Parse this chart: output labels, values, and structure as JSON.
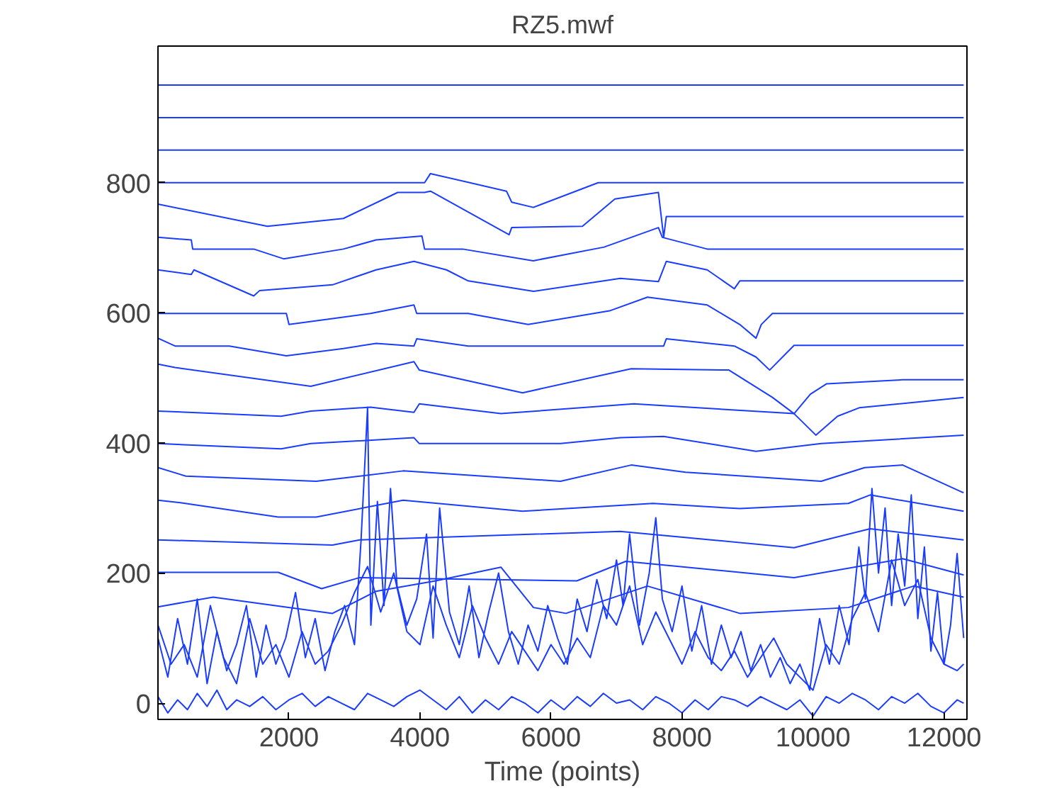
{
  "chart_data": {
    "type": "line",
    "title": "RZ5.mwf",
    "xlabel": "Time (points)",
    "xlim": [
      0,
      12350
    ],
    "ylim": [
      -25,
      1010
    ],
    "xticks": [
      2000,
      4000,
      6000,
      8000,
      10000,
      12000
    ],
    "yticks": [
      0,
      200,
      400,
      600,
      800
    ],
    "grid": false,
    "marker": "none",
    "line_style": "solid",
    "series": [
      {
        "color": "#1a3cff",
        "x": [
          0,
          12300
        ],
        "values": [
          950,
          950
        ]
      },
      {
        "color": "#1a3cff",
        "x": [
          0,
          12300
        ],
        "values": [
          900,
          900
        ]
      },
      {
        "color": "#1a3cff",
        "x": [
          0,
          12300
        ],
        "values": [
          850,
          850
        ]
      },
      {
        "color": "#1a3cff",
        "x": [
          0,
          4070,
          4160,
          5320,
          5400,
          5730,
          6720,
          12300
        ],
        "values": [
          800,
          800,
          814,
          787,
          770,
          762,
          800,
          800
        ]
      },
      {
        "color": "#1a3cff",
        "x": [
          0,
          1670,
          2830,
          3660,
          4070,
          4160,
          5360,
          5400,
          6480,
          6975,
          7640,
          7720,
          7760,
          12300
        ],
        "values": [
          767,
          733,
          745,
          785,
          785,
          787,
          720,
          731,
          733,
          775,
          785,
          716,
          748,
          748
        ]
      },
      {
        "color": "#1a3cff",
        "x": [
          0,
          509,
          530,
          1462,
          1918,
          2830,
          3330,
          4030,
          4070,
          4650,
          5730,
          6810,
          7640,
          7700,
          8385,
          12300
        ],
        "values": [
          716,
          712,
          698,
          698,
          683,
          698,
          712,
          718,
          698,
          698,
          680,
          701,
          731,
          716,
          698,
          698
        ]
      },
      {
        "color": "#1a3cff",
        "x": [
          0,
          509,
          550,
          1462,
          1550,
          2665,
          3330,
          3908,
          4405,
          4737,
          5732,
          7058,
          7640,
          7760,
          8385,
          8799,
          8882,
          12300
        ],
        "values": [
          666,
          659,
          666,
          626,
          634,
          643,
          666,
          679,
          666,
          649,
          633,
          653,
          648,
          679,
          666,
          637,
          649,
          649
        ]
      },
      {
        "color": "#1a3cff",
        "x": [
          0,
          1960,
          2000,
          2665,
          3245,
          3908,
          3950,
          4737,
          5650,
          6893,
          7473,
          8385,
          8882,
          9130,
          9210,
          9380,
          12300
        ],
        "values": [
          599,
          599,
          582,
          591,
          599,
          612,
          599,
          599,
          582,
          603,
          624,
          612,
          582,
          561,
          582,
          599,
          599
        ]
      },
      {
        "color": "#1a3cff",
        "x": [
          0,
          260,
          1090,
          1960,
          2830,
          3330,
          3908,
          3950,
          4737,
          7720,
          7760,
          8799,
          9130,
          9338,
          9711,
          12300
        ],
        "values": [
          561,
          549,
          549,
          534,
          545,
          553,
          549,
          560,
          549,
          549,
          560,
          549,
          532,
          512,
          550,
          550
        ]
      },
      {
        "color": "#1a3cff",
        "x": [
          0,
          260,
          2333,
          3908,
          3990,
          5566,
          7224,
          8716,
          9380,
          9711,
          9960,
          10209,
          11369,
          12300
        ],
        "values": [
          521,
          516,
          487,
          525,
          512,
          477,
          514,
          512,
          470,
          445,
          475,
          491,
          497,
          497
        ]
      },
      {
        "color": "#1a3cff",
        "x": [
          0,
          1880,
          2333,
          3245,
          3908,
          3990,
          5235,
          7265,
          9711,
          10043,
          10375,
          10705,
          12300
        ],
        "values": [
          449,
          441,
          449,
          455,
          447,
          460,
          445,
          460,
          445,
          412,
          441,
          454,
          470
        ]
      },
      {
        "color": "#1a3cff",
        "x": [
          0,
          1880,
          2333,
          3908,
          3990,
          6146,
          7058,
          7720,
          9130,
          10126,
          12300
        ],
        "values": [
          399,
          391,
          399,
          408,
          399,
          399,
          408,
          410,
          387,
          399,
          412
        ]
      },
      {
        "color": "#1a3cff",
        "x": [
          0,
          426,
          2416,
          3742,
          6146,
          7224,
          8053,
          10126,
          10788,
          11369,
          12282,
          12300
        ],
        "values": [
          362,
          349,
          341,
          357,
          341,
          366,
          355,
          341,
          362,
          366,
          324,
          324
        ]
      },
      {
        "color": "#1a3cff",
        "x": [
          0,
          343,
          1836,
          2416,
          3742,
          5566,
          7556,
          8882,
          10540,
          10872,
          12300
        ],
        "values": [
          312,
          308,
          286,
          286,
          312,
          295,
          307,
          299,
          307,
          320,
          295
        ]
      },
      {
        "color": "#1a3cff",
        "x": [
          0,
          2665,
          3079,
          7058,
          9711,
          10872,
          12300
        ],
        "values": [
          251,
          243,
          251,
          264,
          239,
          268,
          251
        ]
      },
      {
        "color": "#1a3cff",
        "x": [
          0,
          1836,
          2499,
          3079,
          6395,
          7141,
          9711,
          11369,
          12300
        ],
        "values": [
          201,
          201,
          176,
          193,
          188,
          218,
          193,
          222,
          197
        ]
      },
      {
        "color": "#1a3cff",
        "x": [
          0,
          841,
          2665,
          3330,
          4240,
          5235,
          5732,
          6229,
          7473,
          8882,
          10540,
          11535,
          12300
        ],
        "values": [
          148,
          163,
          138,
          172,
          188,
          209,
          147,
          138,
          180,
          138,
          147,
          180,
          163
        ]
      },
      {
        "color": "#1a3cff",
        "x": [
          0,
          150,
          300,
          450,
          600,
          750,
          900,
          1050,
          1200,
          1350,
          1500,
          1650,
          1800,
          1950,
          2100,
          2250,
          2400,
          2550,
          2700,
          2850,
          3000,
          3100,
          3200,
          3250,
          3350,
          3450,
          3550,
          3650,
          3800,
          3950,
          4100,
          4200,
          4300,
          4450,
          4600,
          4750,
          4900,
          5050,
          5200,
          5350,
          5500,
          5650,
          5800,
          5950,
          6100,
          6250,
          6400,
          6550,
          6700,
          6850,
          7000,
          7100,
          7200,
          7350,
          7500,
          7600,
          7700,
          7850,
          8000,
          8150,
          8300,
          8450,
          8600,
          8750,
          8900,
          9050,
          9200,
          9350,
          9500,
          9650,
          9800,
          9950,
          10100,
          10250,
          10400,
          10550,
          10700,
          10800,
          10900,
          11000,
          11100,
          11200,
          11300,
          11400,
          11500,
          11600,
          11700,
          11800,
          11900,
          12000,
          12100,
          12200,
          12300
        ],
        "values": [
          100,
          40,
          130,
          60,
          160,
          30,
          110,
          50,
          90,
          150,
          40,
          120,
          60,
          100,
          170,
          70,
          130,
          50,
          110,
          150,
          90,
          250,
          455,
          120,
          310,
          150,
          330,
          180,
          120,
          160,
          260,
          100,
          300,
          140,
          90,
          180,
          70,
          140,
          200,
          110,
          60,
          120,
          80,
          150,
          100,
          60,
          160,
          110,
          190,
          130,
          220,
          150,
          260,
          120,
          200,
          285,
          160,
          110,
          180,
          80,
          150,
          60,
          120,
          70,
          110,
          50,
          90,
          40,
          70,
          30,
          60,
          20,
          130,
          60,
          150,
          90,
          240,
          160,
          330,
          200,
          300,
          150,
          260,
          180,
          320,
          130,
          240,
          80,
          170,
          60,
          120,
          230,
          100
        ]
      },
      {
        "color": "#1a3cff",
        "x": [
          0,
          200,
          400,
          600,
          800,
          1000,
          1200,
          1400,
          1600,
          1800,
          2000,
          2200,
          2400,
          2600,
          2800,
          3000,
          3200,
          3400,
          3600,
          3800,
          4000,
          4200,
          4400,
          4600,
          4800,
          5000,
          5200,
          5400,
          5600,
          5800,
          6000,
          6200,
          6400,
          6600,
          6800,
          7000,
          7200,
          7400,
          7600,
          7800,
          8000,
          8200,
          8400,
          8600,
          8800,
          9000,
          9200,
          9400,
          9600,
          9800,
          10000,
          10200,
          10400,
          10600,
          10800,
          11000,
          11200,
          11400,
          11600,
          11800,
          12000,
          12200,
          12300
        ],
        "values": [
          120,
          60,
          90,
          40,
          150,
          70,
          30,
          130,
          60,
          90,
          40,
          110,
          60,
          80,
          120,
          170,
          210,
          140,
          200,
          110,
          90,
          180,
          120,
          70,
          150,
          100,
          60,
          110,
          80,
          50,
          90,
          60,
          100,
          70,
          150,
          120,
          180,
          90,
          140,
          100,
          60,
          110,
          70,
          50,
          80,
          40,
          70,
          100,
          60,
          40,
          20,
          90,
          60,
          130,
          170,
          110,
          220,
          150,
          190,
          100,
          60,
          50,
          60
        ]
      },
      {
        "color": "#1a3cff",
        "x": [
          0,
          150,
          300,
          450,
          600,
          750,
          900,
          1050,
          1200,
          1400,
          1600,
          1800,
          2000,
          2200,
          2400,
          2600,
          2800,
          3000,
          3200,
          3400,
          3600,
          3800,
          4000,
          4200,
          4400,
          4600,
          4800,
          5000,
          5200,
          5400,
          5600,
          5800,
          6000,
          6200,
          6400,
          6600,
          6800,
          7000,
          7200,
          7400,
          7600,
          7800,
          8000,
          8200,
          8400,
          8600,
          8800,
          9000,
          9200,
          9400,
          9600,
          9800,
          10000,
          10200,
          10400,
          10600,
          10800,
          11000,
          11200,
          11400,
          11600,
          11800,
          12000,
          12200,
          12300
        ],
        "values": [
          10,
          -15,
          5,
          -10,
          15,
          -5,
          20,
          -10,
          5,
          -5,
          10,
          -10,
          5,
          15,
          -5,
          10,
          0,
          -10,
          15,
          5,
          -5,
          10,
          20,
          5,
          -10,
          10,
          -15,
          5,
          -10,
          10,
          0,
          -15,
          5,
          -10,
          10,
          -5,
          15,
          0,
          5,
          -10,
          10,
          0,
          -15,
          5,
          -10,
          10,
          5,
          -5,
          10,
          0,
          -10,
          5,
          -20,
          10,
          0,
          15,
          5,
          -10,
          10,
          0,
          15,
          -5,
          -15,
          5,
          0
        ]
      }
    ]
  }
}
